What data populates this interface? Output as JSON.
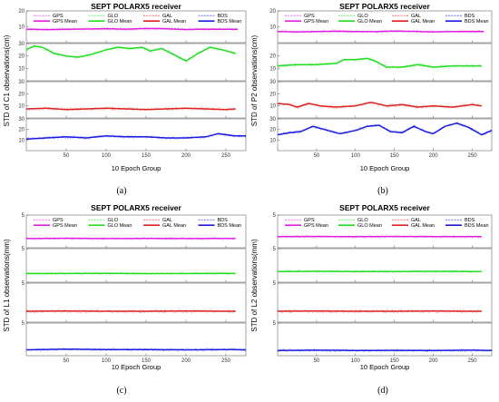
{
  "colors": {
    "GPS": "#e020e0",
    "GLO": "#22dd22",
    "GAL": "#dd2020",
    "BDS": "#1a1ae0"
  },
  "legend": {
    "items": [
      {
        "key": "GPS",
        "label": "GPS",
        "style": "dashed"
      },
      {
        "key": "GLO",
        "label": "GLO",
        "style": "dashed"
      },
      {
        "key": "GAL",
        "label": "GAL",
        "style": "dashed"
      },
      {
        "key": "BDS",
        "label": "BDS",
        "style": "dashed"
      },
      {
        "key": "GPS",
        "label": "GPS Mean",
        "style": "solid"
      },
      {
        "key": "GLO",
        "label": "GLO Mean",
        "style": "solid"
      },
      {
        "key": "GAL",
        "label": "GAL Mean",
        "style": "solid"
      },
      {
        "key": "BDS",
        "label": "BDS Mean",
        "style": "solid"
      }
    ]
  },
  "chart_data": [
    {
      "type": "line",
      "caption": "(a)",
      "title": "SEPT POLARX5 receiver",
      "ylabel": "STD of C1 observations(cm)",
      "xlabel": "10 Epoch Group",
      "xlim": [
        0,
        275
      ],
      "xticks": [
        50,
        100,
        150,
        200,
        250
      ],
      "panels": [
        {
          "system": "GPS",
          "ylim": [
            0,
            20
          ],
          "yticks": [
            10,
            20
          ],
          "x": [
            0,
            25,
            50,
            75,
            100,
            125,
            150,
            175,
            200,
            225,
            250,
            265
          ],
          "values": [
            8.5,
            8.2,
            8.4,
            8.6,
            8.8,
            8.5,
            8.9,
            8.7,
            8.3,
            8.5,
            8.4,
            8.4
          ]
        },
        {
          "system": "GLO",
          "ylim": [
            0,
            30
          ],
          "yticks": [
            10,
            20,
            30
          ],
          "x": [
            0,
            10,
            20,
            35,
            50,
            65,
            80,
            100,
            115,
            130,
            145,
            155,
            170,
            185,
            200,
            215,
            230,
            245,
            262
          ],
          "values": [
            25,
            28,
            27,
            22,
            20,
            19,
            21,
            25,
            27,
            26,
            27,
            24,
            26,
            21,
            16,
            22,
            27,
            25,
            22
          ]
        },
        {
          "system": "GAL",
          "ylim": [
            0,
            30
          ],
          "yticks": [
            10,
            20,
            30
          ],
          "x": [
            0,
            25,
            50,
            75,
            100,
            125,
            150,
            175,
            200,
            225,
            250,
            262
          ],
          "values": [
            7.5,
            8,
            7,
            7.5,
            8,
            7.5,
            7,
            7.5,
            8,
            7.5,
            7,
            7.5
          ]
        },
        {
          "system": "BDS",
          "ylim": [
            0,
            30
          ],
          "yticks": [
            10,
            20,
            30
          ],
          "x": [
            0,
            25,
            50,
            75,
            100,
            125,
            150,
            175,
            200,
            225,
            240,
            260,
            275
          ],
          "values": [
            11,
            12,
            13,
            12,
            14,
            13,
            13,
            12,
            12,
            13,
            16,
            14,
            14
          ]
        }
      ]
    },
    {
      "type": "line",
      "caption": "(b)",
      "title": "SEPT POLARX5 receiver",
      "ylabel": "STD of P2 observations(cm)",
      "xlabel": "10 Epoch Group",
      "xlim": [
        0,
        275
      ],
      "xticks": [
        50,
        100,
        150,
        200,
        250
      ],
      "panels": [
        {
          "system": "GPS",
          "ylim": [
            0,
            20
          ],
          "yticks": [
            10,
            20
          ],
          "x": [
            0,
            25,
            50,
            75,
            100,
            125,
            150,
            175,
            200,
            225,
            250,
            265
          ],
          "values": [
            7,
            6.8,
            7,
            7.2,
            7,
            6.9,
            7.3,
            7.1,
            6.8,
            7,
            7.1,
            7
          ]
        },
        {
          "system": "GLO",
          "ylim": [
            0,
            30
          ],
          "yticks": [
            10,
            20
          ],
          "x": [
            0,
            25,
            50,
            75,
            85,
            100,
            115,
            125,
            140,
            160,
            180,
            200,
            225,
            250,
            262
          ],
          "values": [
            12,
            13,
            13,
            14,
            17,
            17,
            18,
            16,
            11,
            11,
            13,
            11,
            12,
            12,
            12
          ]
        },
        {
          "system": "GAL",
          "ylim": [
            0,
            30
          ],
          "yticks": [
            10,
            20,
            30
          ],
          "x": [
            0,
            15,
            25,
            40,
            55,
            75,
            100,
            120,
            140,
            160,
            180,
            200,
            225,
            250,
            262
          ],
          "values": [
            12,
            11,
            9,
            12,
            10,
            9,
            10,
            13,
            10,
            11,
            9,
            10,
            9,
            11,
            10
          ]
        },
        {
          "system": "BDS",
          "ylim": [
            0,
            30
          ],
          "yticks": [
            10,
            20,
            30
          ],
          "x": [
            0,
            15,
            30,
            45,
            60,
            80,
            100,
            115,
            130,
            145,
            160,
            175,
            190,
            200,
            215,
            230,
            245,
            262,
            275
          ],
          "values": [
            15,
            17,
            18,
            23,
            20,
            16,
            19,
            23,
            24,
            18,
            17,
            23,
            18,
            16,
            23,
            26,
            22,
            15,
            19
          ]
        }
      ]
    },
    {
      "type": "line",
      "caption": "(c)",
      "title": "SEPT POLARX5 receiver",
      "ylabel": "STD of L1 observations(mm)",
      "xlabel": "10 Epoch Group",
      "xlim": [
        0,
        275
      ],
      "xticks": [
        50,
        100,
        150,
        200,
        250
      ],
      "panels": [
        {
          "system": "GPS",
          "ylim": [
            0,
            5
          ],
          "yticks": [
            5
          ],
          "x": [
            0,
            50,
            100,
            150,
            200,
            250,
            262
          ],
          "values": [
            1.4,
            1.45,
            1.4,
            1.42,
            1.4,
            1.42,
            1.4
          ]
        },
        {
          "system": "GLO",
          "ylim": [
            0,
            5
          ],
          "yticks": [
            5
          ],
          "x": [
            0,
            50,
            100,
            150,
            200,
            250,
            262
          ],
          "values": [
            1.3,
            1.3,
            1.32,
            1.28,
            1.3,
            1.32,
            1.3
          ]
        },
        {
          "system": "GAL",
          "ylim": [
            0,
            5
          ],
          "yticks": [
            5
          ],
          "x": [
            0,
            50,
            100,
            150,
            200,
            250,
            262
          ],
          "values": [
            1.4,
            1.42,
            1.4,
            1.4,
            1.42,
            1.4,
            1.4
          ]
        },
        {
          "system": "BDS",
          "ylim": [
            0,
            5
          ],
          "yticks": [
            5
          ],
          "x": [
            0,
            50,
            100,
            150,
            200,
            250,
            275
          ],
          "values": [
            0.9,
            1.0,
            0.95,
            0.95,
            0.9,
            0.95,
            0.9
          ]
        }
      ]
    },
    {
      "type": "line",
      "caption": "(d)",
      "title": "SEPT POLARX5 receiver",
      "ylabel": "STD of L2 observations(mm)",
      "xlabel": "10 Epoch Group",
      "xlim": [
        0,
        275
      ],
      "xticks": [
        50,
        100,
        150,
        200,
        250
      ],
      "panels": [
        {
          "system": "GPS",
          "ylim": [
            0,
            5
          ],
          "yticks": [
            5
          ],
          "x": [
            0,
            50,
            100,
            150,
            200,
            250,
            262
          ],
          "values": [
            1.7,
            1.72,
            1.7,
            1.72,
            1.7,
            1.7,
            1.7
          ]
        },
        {
          "system": "GLO",
          "ylim": [
            0,
            5
          ],
          "yticks": [
            5
          ],
          "x": [
            0,
            50,
            100,
            150,
            200,
            250,
            262
          ],
          "values": [
            1.6,
            1.62,
            1.6,
            1.6,
            1.62,
            1.6,
            1.6
          ]
        },
        {
          "system": "GAL",
          "ylim": [
            0,
            5
          ],
          "yticks": [
            5
          ],
          "x": [
            0,
            50,
            100,
            150,
            200,
            250,
            262
          ],
          "values": [
            1.4,
            1.42,
            1.4,
            1.4,
            1.42,
            1.4,
            1.4
          ]
        },
        {
          "system": "BDS",
          "ylim": [
            0,
            5
          ],
          "yticks": [
            5
          ],
          "x": [
            0,
            50,
            100,
            150,
            200,
            250,
            275
          ],
          "values": [
            0.8,
            0.85,
            0.8,
            0.82,
            0.8,
            0.85,
            0.8
          ]
        }
      ]
    }
  ]
}
